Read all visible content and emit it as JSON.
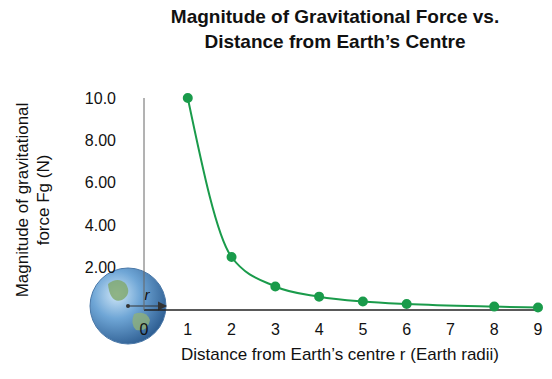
{
  "chart_data": {
    "type": "line",
    "title": "Magnitude of Gravitational Force vs. Distance from Earth’s Centre",
    "x_label": "Distance from Earth’s centre r (Earth radii)",
    "y_label": "Magnitude of gravitational force Fg (N)",
    "annotations": [
      "r"
    ],
    "x": [
      1,
      2,
      3,
      4,
      5,
      6,
      8,
      9
    ],
    "values": [
      10,
      2.5,
      1.11,
      0.63,
      0.4,
      0.28,
      0.16,
      0.12
    ],
    "color": "#1a9b4b",
    "marker": "circle",
    "xlim": [
      0,
      9
    ],
    "xticks": [
      0,
      1,
      2,
      3,
      4,
      5,
      6,
      7,
      8,
      9
    ],
    "ylim": [
      0,
      10
    ],
    "yticks": [
      {
        "value": 2,
        "label": "2.00"
      },
      {
        "value": 4,
        "label": "4.00"
      },
      {
        "value": 6,
        "label": "6.00"
      },
      {
        "value": 8,
        "label": "8.00"
      },
      {
        "value": 10,
        "label": "10.0"
      }
    ],
    "grid": false
  }
}
